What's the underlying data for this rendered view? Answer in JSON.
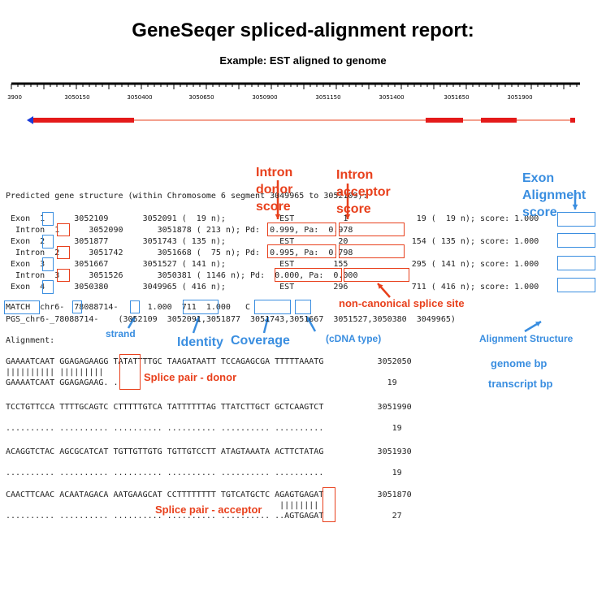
{
  "title": "GeneSeqer spliced-alignment report:",
  "subtitle": "Example: EST aligned to genome",
  "ruler": {
    "ticks": [
      "3900",
      "3050150",
      "3050400",
      "3050650",
      "3050900",
      "3051150",
      "3051400",
      "3051650",
      "3051900"
    ]
  },
  "gene_model": {
    "line_color": "#e8401c",
    "exon_color": "#e41a1a",
    "arrow_color": "#1a3ad8"
  },
  "header_line": "Predicted gene structure (within Chromosome 6 segment 3049965 to 3052109):",
  "structure_lines": [
    " Exon  1      3052109       3052091 (  19 n);           EST          1              19 (  19 n); score: 1.000",
    "  Intron  1      3052090       3051878 ( 213 n); Pd:  0.999, Pa:  0.978",
    " Exon  2      3051877       3051743 ( 135 n);           EST         20             154 ( 135 n); score: 1.000",
    "  Intron  2      3051742       3051668 (  75 n); Pd:  0.995, Pa:  0.798",
    " Exon  3      3051667       3051527 ( 141 n);           EST        155             295 ( 141 n); score: 1.000",
    "  Intron  3      3051526       3050381 ( 1146 n); Pd:  0.000, Pa:  0.000",
    " Exon  4      3050380       3049965 ( 416 n);           EST        296             711 ( 416 n); score: 1.000"
  ],
  "match_line": "MATCH  chr6-  78088714-      1.000  711  1.000   C",
  "pgs_line": "PGS_chr6-_78088714-    (3052109  3052091,3051877  3051743,3051667  3051527,3050380  3049965)",
  "alignment_label": "Alignment:",
  "alignment_lines": [
    "GAAAATCAAT GGAGAGAAGG TATATTTTGC TAAGATAATT TCCAGAGCGA TTTTTAAATG           3052050",
    "|||||||||| |||||||||",
    "GAAAATCAAT GGAGAGAAG. .",
    "                                                                              19",
    "TCCTGTTCCA TTTTGCAGTC CTTTTTGTCA TATTTTTTAG TTATCTTGCT GCTCAAGTCT           3051990",
    ".......... .......... .......... .......... .......... ..........              19",
    "ACAGGTCTAC AGCGCATCAT TGTTGTTGTG TGTTGTCCTT ATAGTAAATA ACTTCTATAG           3051930",
    ".......... .......... .......... .......... .......... ..........              19",
    "CAACTTCAAC ACAATAGACA AATGAAGCAT CCTTTTTTTT TGTCATGCTC AGAGTGAGAT           3051870",
    "                                                        ||||||||",
    ".......... .......... .......... .......... .......... ..AGTGAGAT              27"
  ],
  "labels": {
    "intron_donor": [
      "Intron",
      "donor",
      "score"
    ],
    "intron_acceptor": [
      "Intron",
      "acceptor",
      "score"
    ],
    "exon_alignment": [
      "Exon",
      "Alignment",
      "score"
    ],
    "non_canonical": "non-canonical splice site",
    "strand": "strand",
    "identity": "Identity",
    "coverage": "Coverage",
    "cdna_type": "(cDNA type)",
    "alignment_structure": "Alignment Structure",
    "genome_bp": "genome bp",
    "transcript_bp": "transcript bp",
    "splice_donor": "Splice pair - donor",
    "splice_acceptor": "Splice pair - acceptor"
  },
  "colors": {
    "annotation_red": "#e8401c",
    "annotation_blue": "#3a8ee0"
  }
}
